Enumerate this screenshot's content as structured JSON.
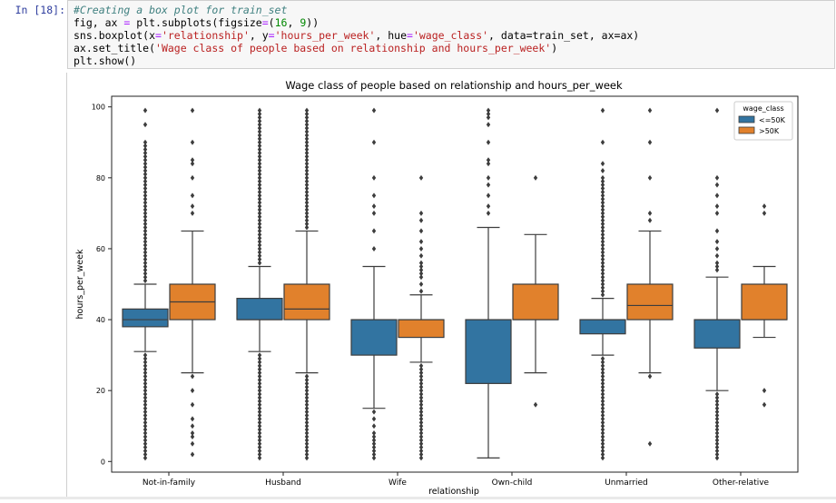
{
  "cell": {
    "prompt": "In [18]:",
    "code": {
      "comment": "#Creating a box plot for train_set",
      "line2": [
        "fig, ax ",
        "=",
        " plt.subplots(figsize",
        "=",
        "(",
        "16",
        ", ",
        "9",
        "))"
      ],
      "line3_prefix": "sns.boxplot(x",
      "line3_x": "'relationship'",
      "line3_y": "'hours_per_week'",
      "line3_hue": "'wage_class'",
      "line3_tail": ", data=train_set, ax=ax)",
      "line4_prefix": "ax.set_title(",
      "line4_title": "'Wage class of people based on relationship and hours_per_week'",
      "line4_suffix": ")",
      "line5": "plt.show()"
    }
  },
  "chart_data": {
    "type": "box",
    "title": "Wage class of people based on relationship and hours_per_week",
    "xlabel": "relationship",
    "ylabel": "hours_per_week",
    "ylim": [
      -3,
      103
    ],
    "yticks": [
      0,
      20,
      40,
      60,
      80,
      100
    ],
    "categories": [
      "Not-in-family",
      "Husband",
      "Wife",
      "Own-child",
      "Unmarried",
      "Other-relative"
    ],
    "legend": {
      "title": "wage_class",
      "placement": "top-right"
    },
    "series": [
      {
        "name": "<=50K",
        "color": "#3274a1",
        "boxes": [
          {
            "q1": 38,
            "median": 40,
            "q3": 43,
            "whislo": 31,
            "whishi": 50,
            "fliers": [
              1,
              2,
              3,
              4,
              5,
              6,
              7,
              8,
              9,
              10,
              11,
              12,
              13,
              14,
              15,
              16,
              17,
              18,
              19,
              20,
              21,
              22,
              23,
              24,
              25,
              26,
              27,
              28,
              29,
              30,
              51,
              52,
              53,
              54,
              55,
              56,
              57,
              58,
              59,
              60,
              61,
              62,
              63,
              64,
              65,
              66,
              67,
              68,
              69,
              70,
              71,
              72,
              73,
              74,
              75,
              76,
              77,
              78,
              79,
              80,
              81,
              82,
              83,
              84,
              85,
              86,
              87,
              88,
              89,
              90,
              95,
              99
            ]
          },
          {
            "q1": 40,
            "median": 40,
            "q3": 46,
            "whislo": 31,
            "whishi": 55,
            "fliers": [
              1,
              2,
              3,
              4,
              5,
              6,
              7,
              8,
              9,
              10,
              11,
              12,
              13,
              14,
              15,
              16,
              17,
              18,
              19,
              20,
              21,
              22,
              23,
              24,
              25,
              26,
              27,
              28,
              29,
              30,
              56,
              57,
              58,
              59,
              60,
              61,
              62,
              63,
              64,
              65,
              66,
              67,
              68,
              69,
              70,
              71,
              72,
              73,
              74,
              75,
              76,
              77,
              78,
              79,
              80,
              81,
              82,
              83,
              84,
              85,
              86,
              87,
              88,
              89,
              90,
              91,
              92,
              93,
              94,
              95,
              96,
              97,
              98,
              99
            ]
          },
          {
            "q1": 30,
            "median": 40,
            "q3": 40,
            "whislo": 15,
            "whishi": 55,
            "fliers": [
              1,
              2,
              3,
              4,
              5,
              6,
              7,
              8,
              10,
              12,
              14,
              60,
              65,
              70,
              72,
              75,
              80,
              90,
              99
            ]
          },
          {
            "q1": 22,
            "median": 40,
            "q3": 40,
            "whislo": 1,
            "whishi": 66,
            "fliers": [
              70,
              72,
              75,
              78,
              80,
              84,
              85,
              90,
              95,
              97,
              98,
              99
            ]
          },
          {
            "q1": 36,
            "median": 40,
            "q3": 40,
            "whislo": 30,
            "whishi": 46,
            "fliers": [
              1,
              2,
              3,
              4,
              5,
              6,
              7,
              8,
              9,
              10,
              11,
              12,
              13,
              14,
              15,
              16,
              17,
              18,
              19,
              20,
              21,
              22,
              23,
              24,
              25,
              26,
              27,
              28,
              29,
              47,
              48,
              49,
              50,
              51,
              52,
              53,
              54,
              55,
              56,
              57,
              58,
              59,
              60,
              61,
              62,
              63,
              64,
              65,
              66,
              67,
              68,
              69,
              70,
              71,
              72,
              73,
              74,
              75,
              76,
              77,
              78,
              79,
              80,
              82,
              84,
              90,
              99
            ]
          },
          {
            "q1": 32,
            "median": 40,
            "q3": 40,
            "whislo": 20,
            "whishi": 52,
            "fliers": [
              1,
              2,
              3,
              4,
              5,
              6,
              7,
              8,
              9,
              10,
              11,
              12,
              13,
              14,
              15,
              16,
              17,
              18,
              19,
              54,
              55,
              56,
              58,
              60,
              62,
              65,
              70,
              72,
              75,
              78,
              80,
              99
            ]
          }
        ]
      },
      {
        "name": ">50K",
        "color": "#e1812c",
        "boxes": [
          {
            "q1": 40,
            "median": 45,
            "q3": 50,
            "whislo": 25,
            "whishi": 65,
            "fliers": [
              2,
              5,
              7,
              8,
              10,
              12,
              16,
              20,
              24,
              70,
              72,
              75,
              80,
              84,
              85,
              90,
              99
            ]
          },
          {
            "q1": 40,
            "median": 43,
            "q3": 50,
            "whislo": 25,
            "whishi": 65,
            "fliers": [
              1,
              2,
              3,
              4,
              5,
              6,
              7,
              8,
              9,
              10,
              11,
              12,
              13,
              14,
              15,
              16,
              17,
              18,
              19,
              20,
              21,
              22,
              23,
              24,
              66,
              67,
              68,
              69,
              70,
              71,
              72,
              73,
              74,
              75,
              76,
              77,
              78,
              79,
              80,
              81,
              82,
              83,
              84,
              85,
              86,
              87,
              88,
              89,
              90,
              91,
              92,
              93,
              94,
              95,
              96,
              97,
              98,
              99
            ]
          },
          {
            "q1": 35,
            "median": 40,
            "q3": 40,
            "whislo": 28,
            "whishi": 47,
            "fliers": [
              1,
              2,
              3,
              4,
              5,
              6,
              7,
              8,
              9,
              10,
              11,
              12,
              13,
              14,
              15,
              16,
              17,
              18,
              19,
              20,
              21,
              22,
              23,
              24,
              25,
              26,
              27,
              48,
              50,
              52,
              53,
              54,
              55,
              56,
              58,
              60,
              62,
              65,
              68,
              70,
              80
            ]
          },
          {
            "q1": 40,
            "median": 40,
            "q3": 50,
            "whislo": 25,
            "whishi": 64,
            "fliers": [
              16,
              80
            ]
          },
          {
            "q1": 40,
            "median": 44,
            "q3": 50,
            "whislo": 25,
            "whishi": 65,
            "fliers": [
              5,
              24,
              68,
              70,
              80,
              90,
              99
            ]
          },
          {
            "q1": 40,
            "median": 40,
            "q3": 50,
            "whislo": 35,
            "whishi": 55,
            "fliers": [
              16,
              20,
              70,
              72
            ]
          }
        ]
      }
    ]
  }
}
